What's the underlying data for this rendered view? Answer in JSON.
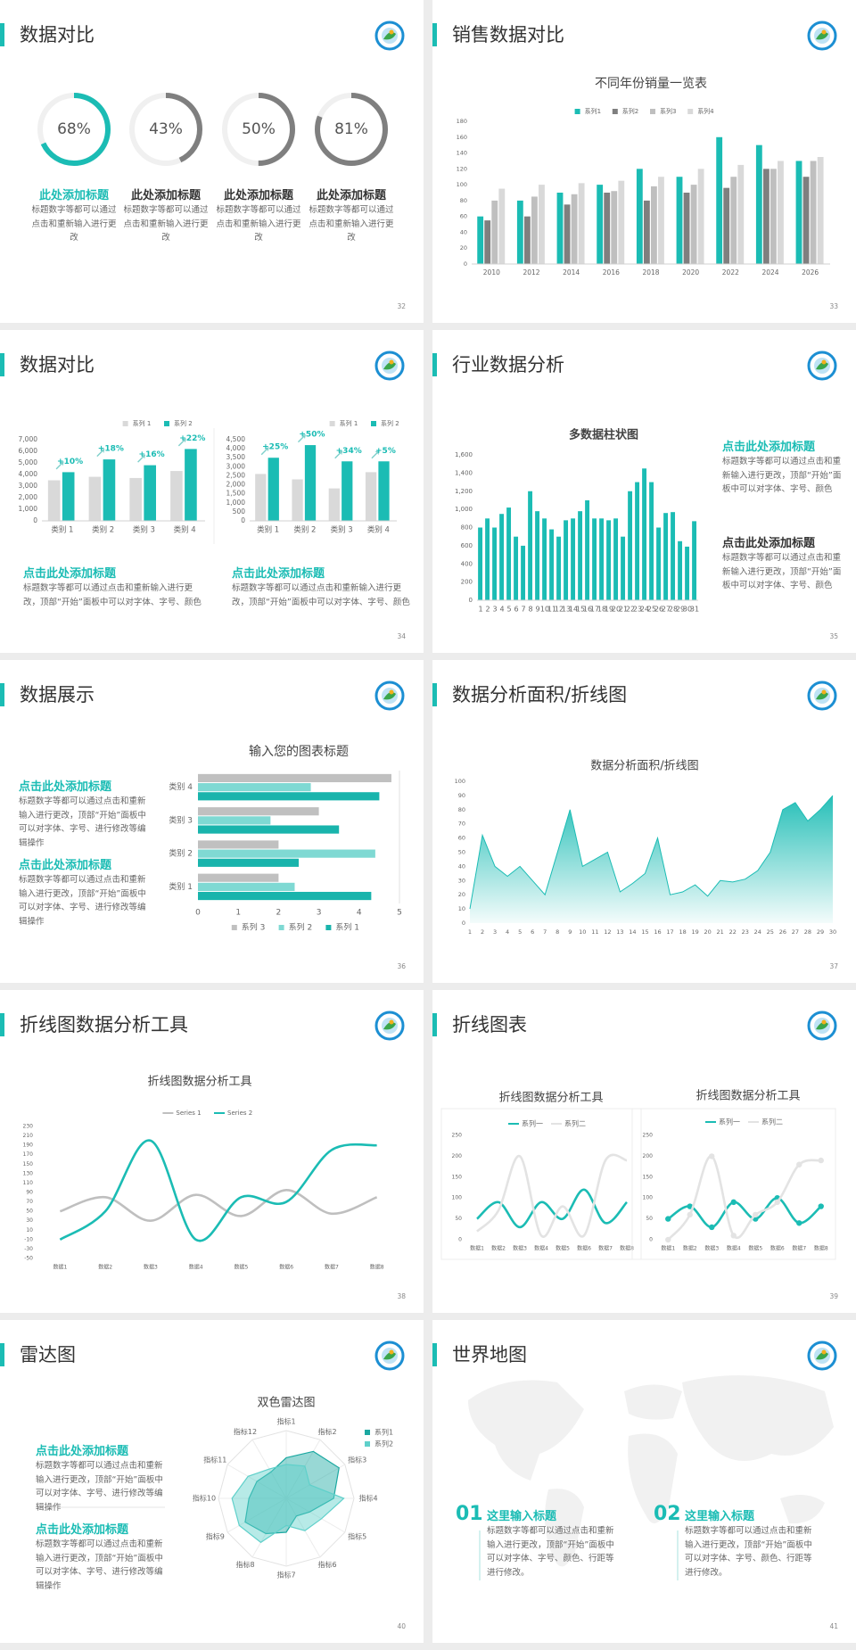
{
  "slides": [
    {
      "title": "数据对比",
      "page": 32,
      "chart": {
        "type": "donut",
        "values": [
          68,
          43,
          50,
          81
        ],
        "value_labels": [
          "68%",
          "43%",
          "50%",
          "81%"
        ],
        "colors": [
          "#1bbcb4",
          "#7f7f7f",
          "#7f7f7f",
          "#7f7f7f"
        ]
      },
      "blocks": [
        {
          "heading": "此处添加标题",
          "text": "标题数字等都可以通过点击和重新输入进行更改"
        },
        {
          "heading": "此处添加标题",
          "text": "标题数字等都可以通过点击和重新输入进行更改"
        },
        {
          "heading": "此处添加标题",
          "text": "标题数字等都可以通过点击和重新输入进行更改"
        },
        {
          "heading": "此处添加标题",
          "text": "标题数字等都可以通过点击和重新输入进行更改"
        }
      ]
    },
    {
      "title": "销售数据对比",
      "page": 33,
      "chart": {
        "type": "bar",
        "title": "不同年份销量一览表",
        "categories": [
          "2010",
          "2012",
          "2014",
          "2016",
          "2018",
          "2020",
          "2022",
          "2024",
          "2026"
        ],
        "series": [
          {
            "name": "系列1",
            "color": "#1bbcb4",
            "values": [
              60,
              80,
              90,
              100,
              120,
              110,
              160,
              150,
              130
            ]
          },
          {
            "name": "系列2",
            "color": "#7f7f7f",
            "values": [
              55,
              60,
              75,
              90,
              80,
              90,
              96,
              120,
              110
            ]
          },
          {
            "name": "系列3",
            "color": "#bfbfbf",
            "values": [
              80,
              85,
              88,
              92,
              98,
              100,
              110,
              120,
              130
            ]
          },
          {
            "name": "系列4",
            "color": "#d9d9d9",
            "values": [
              95,
              100,
              102,
              105,
              110,
              120,
              125,
              130,
              135
            ]
          }
        ],
        "ylim": [
          0,
          180
        ],
        "yticks": [
          0,
          20,
          40,
          60,
          80,
          100,
          120,
          140,
          160,
          180
        ],
        "grid": false
      }
    },
    {
      "title": "数据对比",
      "page": 34,
      "charts": [
        {
          "type": "bar",
          "categories": [
            "类别 1",
            "类别 2",
            "类别 3",
            "类别 4"
          ],
          "series": [
            {
              "name": "系列 1",
              "color": "#d9d9d9",
              "values": [
                3500,
                3800,
                3700,
                4300
              ]
            },
            {
              "name": "系列 2",
              "color": "#1bbcb4",
              "values": [
                4200,
                5300,
                4800,
                6200
              ]
            }
          ],
          "annotations": [
            "+10%",
            "+18%",
            "+16%",
            "+22%"
          ],
          "ylim": [
            0,
            7000
          ],
          "yticks": [
            0,
            {
              "value": 1000,
              "label": "1,000"
            },
            {
              "value": 2000,
              "label": "2,000"
            },
            {
              "value": 3000,
              "label": "3,000"
            },
            {
              "value": 4000,
              "label": "4,000"
            },
            {
              "value": 5000,
              "label": "5,000"
            },
            {
              "value": 6000,
              "label": "6,000"
            },
            {
              "value": 7000,
              "label": "7,000"
            }
          ],
          "grid": false
        },
        {
          "type": "bar",
          "categories": [
            "类别 1",
            "类别 2",
            "类别 3",
            "类别 4"
          ],
          "series": [
            {
              "name": "系列 1",
              "color": "#d9d9d9",
              "values": [
                2600,
                2300,
                1800,
                2700
              ]
            },
            {
              "name": "系列 2",
              "color": "#1bbcb4",
              "values": [
                3500,
                4200,
                3300,
                3300
              ]
            }
          ],
          "annotations": [
            "+25%",
            "+50%",
            "+34%",
            "+5%"
          ],
          "ylim": [
            0,
            4500
          ],
          "yticks": [
            0,
            500,
            {
              "value": 1000,
              "label": "1,000"
            },
            {
              "value": 1500,
              "label": "1,500"
            },
            {
              "value": 2000,
              "label": "2,000"
            },
            {
              "value": 2500,
              "label": "2,500"
            },
            {
              "value": 3000,
              "label": "3,000"
            },
            {
              "value": 3500,
              "label": "3,500"
            },
            {
              "value": 4000,
              "label": "4,000"
            },
            {
              "value": 4500,
              "label": "4,500"
            }
          ],
          "grid": false
        }
      ],
      "blocks": [
        {
          "heading": "点击此处添加标题",
          "text": "标题数字等都可以通过点击和重新输入进行更改，顶部“开始”面板中可以对字体、字号、颜色"
        },
        {
          "heading": "点击此处添加标题",
          "text": "标题数字等都可以通过点击和重新输入进行更改，顶部“开始”面板中可以对字体、字号、颜色"
        }
      ]
    },
    {
      "title": "行业数据分析",
      "page": 35,
      "chart": {
        "type": "bar",
        "title": "多数据柱状图",
        "categories": [
          "1",
          "2",
          "3",
          "4",
          "5",
          "6",
          "7",
          "8",
          "9",
          "10",
          "11",
          "12",
          "13",
          "14",
          "15",
          "16",
          "17",
          "18",
          "19",
          "20",
          "21",
          "22",
          "23",
          "24",
          "25",
          "26",
          "27",
          "28",
          "29",
          "30",
          "31"
        ],
        "values": [
          800,
          900,
          800,
          950,
          1020,
          700,
          600,
          1200,
          980,
          900,
          780,
          700,
          880,
          900,
          980,
          1100,
          900,
          900,
          880,
          900,
          700,
          1200,
          1300,
          1450,
          1300,
          800,
          960,
          970,
          650,
          590,
          870
        ],
        "color": "#1bbcb4",
        "ylim": [
          0,
          1600
        ],
        "yticks": [
          0,
          200,
          400,
          600,
          800,
          {
            "value": 1000,
            "label": "1,000"
          },
          {
            "value": 1200,
            "label": "1,200"
          },
          {
            "value": 1400,
            "label": "1,400"
          },
          {
            "value": 1600,
            "label": "1,600"
          }
        ],
        "grid": false
      },
      "blocks": [
        {
          "heading": "点击此处添加标题",
          "text": "标题数字等都可以通过点击和重新输入进行更改，顶部“开始”面板中可以对字体、字号、颜色"
        },
        {
          "heading": "点击此处添加标题",
          "text": "标题数字等都可以通过点击和重新输入进行更改，顶部“开始”面板中可以对字体、字号、颜色"
        }
      ]
    },
    {
      "title": "数据展示",
      "page": 36,
      "chart": {
        "type": "hbar",
        "title": "输入您的图表标题",
        "categories": [
          "类别 1",
          "类别 2",
          "类别 3",
          "类别 4"
        ],
        "series": [
          {
            "name": "系列 1",
            "color": "#19b4ac",
            "values": [
              4.3,
              2.5,
              3.5,
              4.5
            ]
          },
          {
            "name": "系列 2",
            "color": "#7fd9d3",
            "values": [
              2.4,
              4.4,
              1.8,
              2.8
            ]
          },
          {
            "name": "系列 3",
            "color": "#c0c0c0",
            "values": [
              2.0,
              2.0,
              3.0,
              4.8
            ]
          }
        ],
        "xlim": [
          0,
          5
        ],
        "xticks": [
          0,
          1,
          2,
          3,
          4,
          5
        ],
        "grid": false
      },
      "blocks": [
        {
          "heading": "点击此处添加标题",
          "text": "标题数字等都可以通过点击和重新输入进行更改，顶部“开始”面板中可以对字体、字号、进行修改等编辑操作"
        },
        {
          "heading": "点击此处添加标题",
          "text": "标题数字等都可以通过点击和重新输入进行更改，顶部“开始”面板中可以对字体、字号、进行修改等编辑操作"
        }
      ]
    },
    {
      "title": "数据分析面积/折线图",
      "page": 37,
      "chart": {
        "type": "area",
        "title": "数据分析面积/折线图",
        "categories": [
          "1",
          "2",
          "3",
          "4",
          "5",
          "6",
          "7",
          "8",
          "9",
          "10",
          "11",
          "12",
          "13",
          "14",
          "15",
          "16",
          "17",
          "18",
          "19",
          "20",
          "21",
          "22",
          "23",
          "24",
          "25",
          "26",
          "27",
          "28",
          "29",
          "30"
        ],
        "values": [
          10,
          62,
          40,
          33,
          40,
          30,
          20,
          50,
          80,
          40,
          45,
          50,
          22,
          28,
          35,
          60,
          20,
          22,
          27,
          19,
          30,
          29,
          31,
          37,
          50,
          80,
          85,
          72,
          80,
          90
        ],
        "color": "#1bbcb4",
        "ylim": [
          0,
          100
        ],
        "yticks": [
          0,
          10,
          20,
          30,
          40,
          50,
          60,
          70,
          80,
          90,
          100
        ],
        "grid": false
      }
    },
    {
      "title": "折线图数据分析工具",
      "page": 38,
      "chart": {
        "type": "line",
        "smooth": true,
        "title": "折线图数据分析工具",
        "categories": [
          "数据1",
          "数据2",
          "数据3",
          "数据4",
          "数据5",
          "数据6",
          "数据7",
          "数据8"
        ],
        "series": [
          {
            "name": "Series 1",
            "color": "#bfbfbf",
            "values": [
              50,
              80,
              30,
              85,
              40,
              95,
              45,
              80
            ]
          },
          {
            "name": "Series 2",
            "color": "#1bbcb4",
            "values": [
              -10,
              50,
              200,
              -10,
              80,
              70,
              180,
              190
            ]
          }
        ],
        "ylim": [
          -50,
          230
        ],
        "yticks": [
          -50,
          -30,
          -10,
          10,
          30,
          50,
          70,
          90,
          110,
          130,
          150,
          170,
          190,
          210,
          230
        ],
        "grid": false
      }
    },
    {
      "title": "折线图表",
      "page": 39,
      "charts": [
        {
          "type": "line",
          "smooth": true,
          "markers": false,
          "title": "折线图数据分析工具",
          "categories": [
            "数据1",
            "数据2",
            "数据3",
            "数据4",
            "数据5",
            "数据6",
            "数据7",
            "数据8"
          ],
          "series": [
            {
              "name": "系列一",
              "color": "#1bbcb4",
              "values": [
                50,
                90,
                30,
                90,
                50,
                120,
                40,
                90
              ]
            },
            {
              "name": "系列二",
              "color": "#e3e3e3",
              "values": [
                20,
                70,
                200,
                10,
                80,
                10,
                190,
                190
              ]
            }
          ],
          "ylim": [
            0,
            250
          ],
          "yticks": [
            0,
            50,
            100,
            150,
            200,
            250
          ],
          "grid": false
        },
        {
          "type": "line",
          "smooth": true,
          "markers": true,
          "title": "折线图数据分析工具",
          "categories": [
            "数据1",
            "数据2",
            "数据3",
            "数据4",
            "数据5",
            "数据6",
            "数据7",
            "数据8"
          ],
          "series": [
            {
              "name": "系列一",
              "color": "#1bbcb4",
              "values": [
                50,
                80,
                30,
                90,
                50,
                100,
                40,
                80
              ]
            },
            {
              "name": "系列二",
              "color": "#e3e3e3",
              "values": [
                0,
                60,
                200,
                10,
                60,
                90,
                180,
                190
              ]
            }
          ],
          "ylim": [
            0,
            250
          ],
          "yticks": [
            0,
            50,
            100,
            150,
            200,
            250
          ],
          "grid": false
        }
      ]
    },
    {
      "title": "雷达图",
      "page": 40,
      "chart": {
        "type": "radar",
        "title": "双色雷达图",
        "indicators": [
          "指标1",
          "指标2",
          "指标3",
          "指标4",
          "指标5",
          "指标6",
          "指标7",
          "指标8",
          "指标9",
          "指标10",
          "指标11",
          "指标12"
        ],
        "series": [
          {
            "name": "系列1",
            "color": "#1ba8a1",
            "values": [
              60,
              80,
              90,
              70,
              40,
              30,
              50,
              60,
              70,
              55,
              50,
              45
            ]
          },
          {
            "name": "系列2",
            "color": "#5fd0ca",
            "values": [
              50,
              55,
              40,
              85,
              60,
              55,
              40,
              75,
              80,
              80,
              65,
              50
            ]
          }
        ],
        "rlim": [
          0,
          100
        ]
      },
      "blocks": [
        {
          "heading": "点击此处添加标题",
          "text": "标题数字等都可以通过点击和重新输入进行更改，顶部“开始”面板中可以对字体、字号、进行修改等编辑操作"
        },
        {
          "heading": "点击此处添加标题",
          "text": "标题数字等都可以通过点击和重新输入进行更改，顶部“开始”面板中可以对字体、字号、进行修改等编辑操作"
        }
      ]
    },
    {
      "title": "世界地图",
      "page": 41,
      "blocks": [
        {
          "number": "01",
          "heading": "这里输入标题",
          "text": "标题数字等都可以通过点击和重新输入进行更改，顶部“开始”面板中可以对字体、字号、颜色、行距等进行修改。"
        },
        {
          "number": "02",
          "heading": "这里输入标题",
          "text": "标题数字等都可以通过点击和重新输入进行更改，顶部“开始”面板中可以对字体、字号、颜色、行距等进行修改。"
        }
      ]
    }
  ]
}
